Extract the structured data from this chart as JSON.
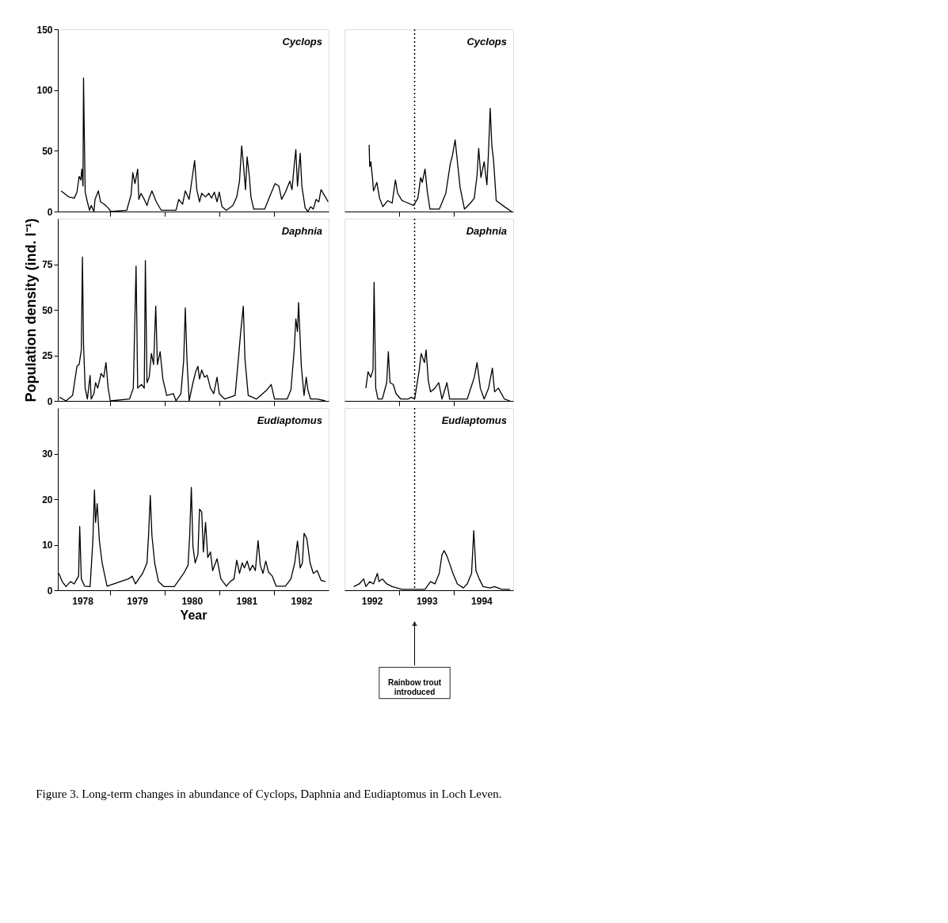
{
  "chart_data": [
    {
      "type": "line",
      "annotations": [
        "Cyclops"
      ],
      "xlim": [
        1978.05,
        1983.0
      ],
      "ylim": [
        0,
        150
      ],
      "yticks": [
        0,
        50,
        100,
        150
      ],
      "tick_labels": "y",
      "grid": false,
      "line_style": "solid",
      "marker": "none",
      "xticks": [
        1979,
        1980,
        1981,
        1982
      ],
      "x": [
        1978.11,
        1978.25,
        1978.35,
        1978.4,
        1978.44,
        1978.47,
        1978.49,
        1978.51,
        1978.52,
        1978.53,
        1978.55,
        1978.59,
        1978.63,
        1978.66,
        1978.71,
        1978.73,
        1978.79,
        1978.83,
        1978.9,
        1978.97,
        1979.02,
        1979.31,
        1979.39,
        1979.42,
        1979.46,
        1979.51,
        1979.53,
        1979.57,
        1979.63,
        1979.68,
        1979.71,
        1979.77,
        1979.85,
        1979.94,
        1980.21,
        1980.26,
        1980.33,
        1980.38,
        1980.45,
        1980.51,
        1980.55,
        1980.59,
        1980.64,
        1980.68,
        1980.75,
        1980.81,
        1980.86,
        1980.91,
        1980.96,
        1981.0,
        1981.05,
        1981.13,
        1981.25,
        1981.32,
        1981.37,
        1981.41,
        1981.44,
        1981.48,
        1981.51,
        1981.55,
        1981.58,
        1981.63,
        1981.83,
        1981.92,
        1982.02,
        1982.09,
        1982.14,
        1982.21,
        1982.29,
        1982.33,
        1982.37,
        1982.4,
        1982.43,
        1982.48,
        1982.51,
        1982.57,
        1982.62,
        1982.67,
        1982.72,
        1982.77,
        1982.82,
        1982.86,
        1982.94,
        1982.99
      ],
      "series": [
        {
          "color": "#000000",
          "values": [
            17,
            12,
            11,
            16,
            29,
            26,
            35,
            21,
            110,
            77,
            16,
            8,
            1,
            5,
            0,
            10,
            17,
            8,
            6,
            3,
            0,
            1,
            14,
            32,
            23,
            35,
            10,
            15,
            10,
            5,
            10,
            17,
            8,
            1,
            1,
            10,
            6,
            17,
            10,
            29,
            42,
            18,
            8,
            15,
            12,
            15,
            11,
            16,
            8,
            16,
            4,
            1,
            5,
            12,
            25,
            54,
            40,
            18,
            45,
            29,
            12,
            2,
            2,
            12,
            23,
            21,
            10,
            16,
            25,
            18,
            38,
            51,
            21,
            48,
            21,
            3,
            0,
            4,
            2,
            10,
            8,
            18,
            12,
            8
          ]
        }
      ]
    },
    {
      "type": "line",
      "annotations": [
        "Cyclops"
      ],
      "xlim": [
        1992.0,
        1995.08
      ],
      "ylim": [
        0,
        150
      ],
      "yticks": [
        0,
        50,
        100,
        150
      ],
      "tick_labels": false,
      "grid": false,
      "line_style": "solid",
      "marker": "none",
      "xticks": [
        1993,
        1994
      ],
      "ref_lines": [
        {
          "axis": "x",
          "value": 1993.28,
          "line_style": "dotted"
        }
      ],
      "x": [
        1992.45,
        1992.46,
        1992.48,
        1992.51,
        1992.53,
        1992.59,
        1992.64,
        1992.7,
        1992.79,
        1992.87,
        1992.93,
        1992.97,
        1993.05,
        1993.16,
        1993.26,
        1993.34,
        1993.39,
        1993.42,
        1993.47,
        1993.51,
        1993.56,
        1993.73,
        1993.85,
        1993.93,
        1993.97,
        1994.02,
        1994.05,
        1994.11,
        1994.19,
        1994.3,
        1994.37,
        1994.42,
        1994.45,
        1994.49,
        1994.55,
        1994.6,
        1994.63,
        1994.66,
        1994.69,
        1994.72,
        1994.77,
        1994.92,
        1995.05
      ],
      "series": [
        {
          "color": "#000000",
          "values": [
            55,
            37,
            41,
            28,
            17,
            24,
            11,
            4,
            9,
            7,
            26,
            15,
            9,
            7,
            5,
            11,
            28,
            24,
            35,
            17,
            2,
            2,
            15,
            39,
            46,
            59,
            46,
            20,
            2,
            7,
            11,
            30,
            52,
            28,
            41,
            22,
            50,
            85,
            54,
            43,
            9,
            4,
            0
          ]
        }
      ]
    },
    {
      "type": "line",
      "ylabel": "Population density (ind. l⁻¹)",
      "annotations": [
        "Daphnia"
      ],
      "xlim": [
        1978.05,
        1983.0
      ],
      "ylim": [
        0,
        100
      ],
      "yticks": [
        0,
        25,
        50,
        75
      ],
      "tick_labels": "y",
      "grid": false,
      "line_style": "solid",
      "marker": "none",
      "xticks": [
        1979,
        1980,
        1981,
        1982
      ],
      "x": [
        1978.08,
        1978.2,
        1978.32,
        1978.4,
        1978.44,
        1978.48,
        1978.5,
        1978.52,
        1978.55,
        1978.59,
        1978.64,
        1978.66,
        1978.71,
        1978.74,
        1978.78,
        1978.84,
        1978.89,
        1978.93,
        1978.97,
        1979.01,
        1979.36,
        1979.43,
        1979.48,
        1979.51,
        1979.58,
        1979.63,
        1979.65,
        1979.68,
        1979.72,
        1979.76,
        1979.8,
        1979.84,
        1979.87,
        1979.92,
        1979.97,
        1980.04,
        1980.16,
        1980.21,
        1980.3,
        1980.35,
        1980.38,
        1980.41,
        1980.45,
        1980.52,
        1980.57,
        1980.61,
        1980.64,
        1980.68,
        1980.73,
        1980.78,
        1980.84,
        1980.9,
        1980.96,
        1981.0,
        1981.1,
        1981.29,
        1981.35,
        1981.39,
        1981.44,
        1981.47,
        1981.53,
        1981.68,
        1981.87,
        1981.95,
        1982.01,
        1982.24,
        1982.31,
        1982.37,
        1982.4,
        1982.43,
        1982.45,
        1982.5,
        1982.55,
        1982.59,
        1982.62,
        1982.67,
        1982.79,
        1982.94
      ],
      "series": [
        {
          "color": "#000000",
          "values": [
            2,
            0,
            3,
            19,
            20,
            28,
            79,
            31,
            7,
            1,
            14,
            1,
            4,
            10,
            7,
            15,
            13,
            21,
            7,
            0,
            1,
            7,
            74,
            7,
            9,
            7,
            77,
            10,
            13,
            26,
            20,
            52,
            20,
            27,
            12,
            3,
            4,
            0,
            4,
            22,
            51,
            23,
            0,
            10,
            16,
            19,
            12,
            17,
            13,
            14,
            7,
            4,
            13,
            4,
            1,
            3,
            23,
            37,
            52,
            23,
            3,
            1,
            6,
            9,
            1,
            1,
            6,
            28,
            45,
            38,
            54,
            19,
            3,
            13,
            6,
            1,
            1,
            0
          ]
        }
      ]
    },
    {
      "type": "line",
      "annotations": [
        "Daphnia"
      ],
      "xlim": [
        1992.0,
        1995.08
      ],
      "ylim": [
        0,
        100
      ],
      "yticks": [
        0,
        25,
        50,
        75
      ],
      "tick_labels": false,
      "grid": false,
      "line_style": "solid",
      "marker": "none",
      "xticks": [
        1993,
        1994
      ],
      "ref_lines": [
        {
          "axis": "x",
          "value": 1993.28,
          "line_style": "dotted"
        }
      ],
      "x": [
        1992.39,
        1992.43,
        1992.48,
        1992.52,
        1992.54,
        1992.57,
        1992.61,
        1992.69,
        1992.77,
        1992.8,
        1992.83,
        1992.89,
        1992.94,
        1993.03,
        1993.16,
        1993.22,
        1993.28,
        1993.36,
        1993.4,
        1993.46,
        1993.49,
        1993.53,
        1993.57,
        1993.65,
        1993.72,
        1993.78,
        1993.87,
        1993.92,
        1994.24,
        1994.37,
        1994.42,
        1994.48,
        1994.55,
        1994.63,
        1994.7,
        1994.74,
        1994.81,
        1994.92,
        1995.02
      ],
      "series": [
        {
          "color": "#000000",
          "values": [
            7,
            16,
            13,
            17,
            65,
            7,
            1,
            1,
            10,
            27,
            10,
            9,
            4,
            1,
            1,
            2,
            1,
            16,
            26,
            21,
            28,
            11,
            5,
            7,
            10,
            1,
            10,
            1,
            1,
            13,
            21,
            7,
            1,
            7,
            18,
            5,
            7,
            1,
            0
          ]
        }
      ]
    },
    {
      "type": "line",
      "xlabel": "Year",
      "annotations": [
        "Eudiaptomus",
        "Figure 3. Long-term changes in abundance of Cyclops, Daphnia and Eudiaptomus in Loch Leven."
      ],
      "xlim": [
        1978.05,
        1983.0
      ],
      "ylim": [
        0,
        40
      ],
      "yticks": [
        0,
        10,
        20,
        30
      ],
      "grid": false,
      "line_style": "solid",
      "marker": "none",
      "xticks": [
        {
          "value": 1978.5,
          "label": "1978"
        },
        {
          "value": 1979,
          "label": null
        },
        {
          "value": 1979.5,
          "label": "1979"
        },
        {
          "value": 1980,
          "label": null
        },
        {
          "value": 1980.5,
          "label": "1980"
        },
        {
          "value": 1981,
          "label": null
        },
        {
          "value": 1981.5,
          "label": "1981"
        },
        {
          "value": 1982,
          "label": null
        },
        {
          "value": 1982.5,
          "label": "1982"
        }
      ],
      "x": [
        1978.07,
        1978.13,
        1978.2,
        1978.28,
        1978.35,
        1978.4,
        1978.43,
        1978.45,
        1978.48,
        1978.54,
        1978.64,
        1978.69,
        1978.72,
        1978.74,
        1978.77,
        1978.81,
        1978.86,
        1978.9,
        1978.95,
        1979.34,
        1979.41,
        1979.47,
        1979.53,
        1979.6,
        1979.68,
        1979.71,
        1979.74,
        1979.77,
        1979.82,
        1979.89,
        1979.99,
        1980.18,
        1980.35,
        1980.43,
        1980.46,
        1980.49,
        1980.52,
        1980.56,
        1980.61,
        1980.64,
        1980.68,
        1980.71,
        1980.75,
        1980.79,
        1980.84,
        1980.88,
        1980.96,
        1981.03,
        1981.13,
        1981.2,
        1981.27,
        1981.32,
        1981.37,
        1981.42,
        1981.46,
        1981.51,
        1981.56,
        1981.61,
        1981.66,
        1981.71,
        1981.75,
        1981.8,
        1981.85,
        1981.9,
        1981.97,
        1982.04,
        1982.21,
        1982.31,
        1982.38,
        1982.43,
        1982.48,
        1982.52,
        1982.55,
        1982.6,
        1982.66,
        1982.72,
        1982.79,
        1982.86,
        1982.94
      ],
      "series": [
        {
          "color": "#000000",
          "values": [
            3.7,
            1.9,
            0.8,
            1.9,
            1.4,
            2.5,
            3.1,
            14,
            2.5,
            0.9,
            0.8,
            10.8,
            22,
            14.9,
            19,
            10.8,
            6,
            3.7,
            0.9,
            2.5,
            3.1,
            1.4,
            2.5,
            3.7,
            6,
            12.5,
            20.8,
            12,
            6,
            1.9,
            0.8,
            0.8,
            3.7,
            5.5,
            12,
            22.6,
            9.6,
            6,
            7.8,
            17.8,
            17.2,
            8.4,
            14.9,
            7.2,
            8.4,
            4.3,
            6.9,
            2.5,
            0.9,
            1.9,
            2.5,
            6.6,
            3.7,
            6,
            4.9,
            6.4,
            4.3,
            5.5,
            4.3,
            10.9,
            5.5,
            3.7,
            6.4,
            4,
            3.1,
            0.9,
            0.9,
            2.5,
            6,
            10.8,
            4.9,
            6,
            12.5,
            11.4,
            6,
            3.7,
            4.3,
            2.2,
            1.9
          ]
        }
      ]
    },
    {
      "type": "line",
      "annotations": [
        "Eudiaptomus"
      ],
      "xlim": [
        1992.0,
        1995.08
      ],
      "ylim": [
        0,
        40
      ],
      "yticks": [
        0,
        10,
        20,
        30
      ],
      "tick_labels": "x",
      "grid": false,
      "line_style": "solid",
      "marker": "none",
      "xticks": [
        {
          "value": 1992.5,
          "label": "1992"
        },
        {
          "value": 1993,
          "label": null
        },
        {
          "value": 1993.5,
          "label": "1993"
        },
        {
          "value": 1994,
          "label": null
        },
        {
          "value": 1994.5,
          "label": "1994"
        }
      ],
      "ref_lines": [
        {
          "axis": "x",
          "value": 1993.28,
          "line_style": "dotted",
          "label": "Rainbow trout\nintroduced"
        }
      ],
      "x": [
        1992.17,
        1992.27,
        1992.35,
        1992.39,
        1992.46,
        1992.53,
        1992.6,
        1992.63,
        1992.69,
        1992.77,
        1992.87,
        1993.05,
        1993.26,
        1993.47,
        1993.57,
        1993.65,
        1993.73,
        1993.78,
        1993.82,
        1993.87,
        1993.92,
        1993.98,
        1994.06,
        1994.17,
        1994.24,
        1994.32,
        1994.36,
        1994.4,
        1994.46,
        1994.53,
        1994.66,
        1994.74,
        1994.87,
        1995.02
      ],
      "series": [
        {
          "color": "#000000",
          "values": [
            0.8,
            1.4,
            2.5,
            0.8,
            1.9,
            1.4,
            3.7,
            1.9,
            2.5,
            1.4,
            0.8,
            0.2,
            0.2,
            0.2,
            1.9,
            1.4,
            3.7,
            7.8,
            8.7,
            7.5,
            5.8,
            3.7,
            1.4,
            0.5,
            1.4,
            3.7,
            13.1,
            4.3,
            2.5,
            0.8,
            0.5,
            0.8,
            0.2,
            0.2
          ]
        }
      ]
    }
  ]
}
